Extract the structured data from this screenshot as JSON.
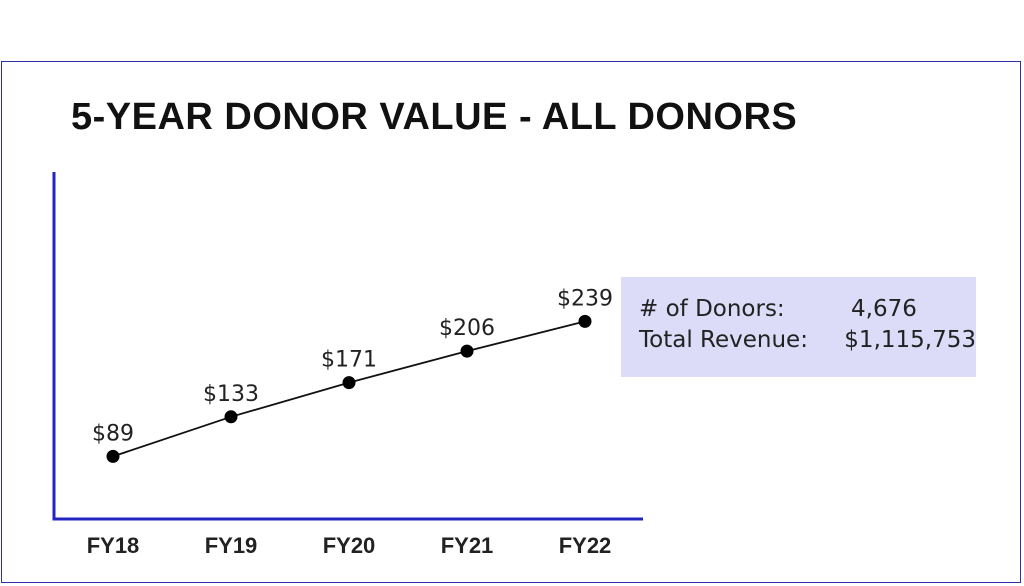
{
  "chart_data": {
    "type": "line",
    "title": "5-YEAR DONOR VALUE - ALL DONORS",
    "categories": [
      "FY18",
      "FY19",
      "FY20",
      "FY21",
      "FY22"
    ],
    "values": [
      89,
      133,
      171,
      206,
      239
    ],
    "data_labels": [
      "$89",
      "$133",
      "$171",
      "$206",
      "$239"
    ],
    "xlabel": "",
    "ylabel": "",
    "grid": false,
    "y_ticks_shown": false
  },
  "summary": {
    "donors_label": "#  of Donors:",
    "donors_value": "4,676",
    "revenue_label": "Total Revenue:",
    "revenue_value": "$1,115,753"
  },
  "colors": {
    "axis": "#2424c0",
    "line": "#111111",
    "marker": "#000000",
    "frame": "#2f2fa8",
    "summary_bg": "#dcdcf8"
  }
}
